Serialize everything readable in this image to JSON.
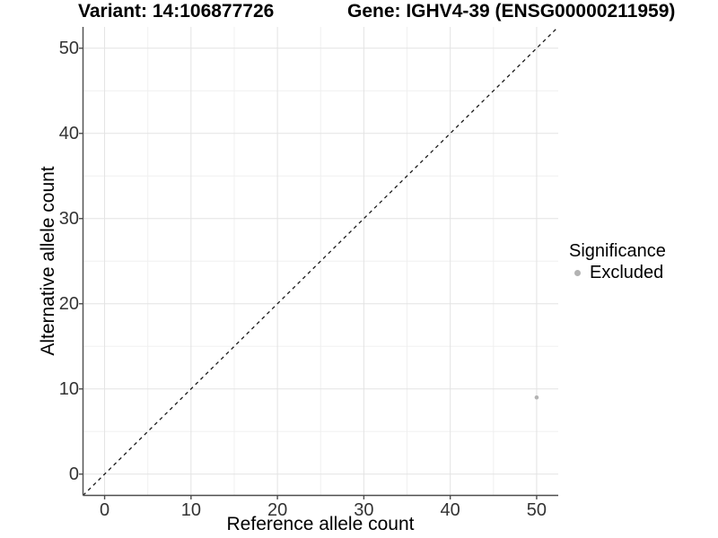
{
  "chart_data": {
    "type": "scatter",
    "title_left": "Variant: 14:106877726",
    "title_right": "Gene: IGHV4-39 (ENSG00000211959)",
    "xlabel": "Reference allele count",
    "ylabel": "Alternative allele count",
    "xlim": [
      -2.5,
      52.5
    ],
    "ylim": [
      -2.5,
      52.5
    ],
    "x_ticks": [
      0,
      10,
      20,
      30,
      40,
      50
    ],
    "y_ticks": [
      0,
      10,
      20,
      30,
      40,
      50
    ],
    "x_minor_ticks": [
      5,
      15,
      25,
      35,
      45
    ],
    "y_minor_ticks": [
      5,
      15,
      25,
      35,
      45
    ],
    "grid": "on",
    "legend_title": "Significance",
    "legend_position": "right",
    "series": [
      {
        "name": "Excluded",
        "color": "#b3b3b3",
        "points": [
          {
            "x": 50,
            "y": 9
          }
        ]
      }
    ],
    "reference_line": {
      "kind": "identity",
      "slope": 1,
      "intercept": 0,
      "style": "dashed",
      "color": "#1a1a1a"
    },
    "colors": {
      "background": "#ffffff",
      "grid_major": "#e3e3e3",
      "grid_minor": "#f0f0f0",
      "axis": "#4d4d4d",
      "tick_label": "#333333",
      "title": "#000000"
    }
  }
}
